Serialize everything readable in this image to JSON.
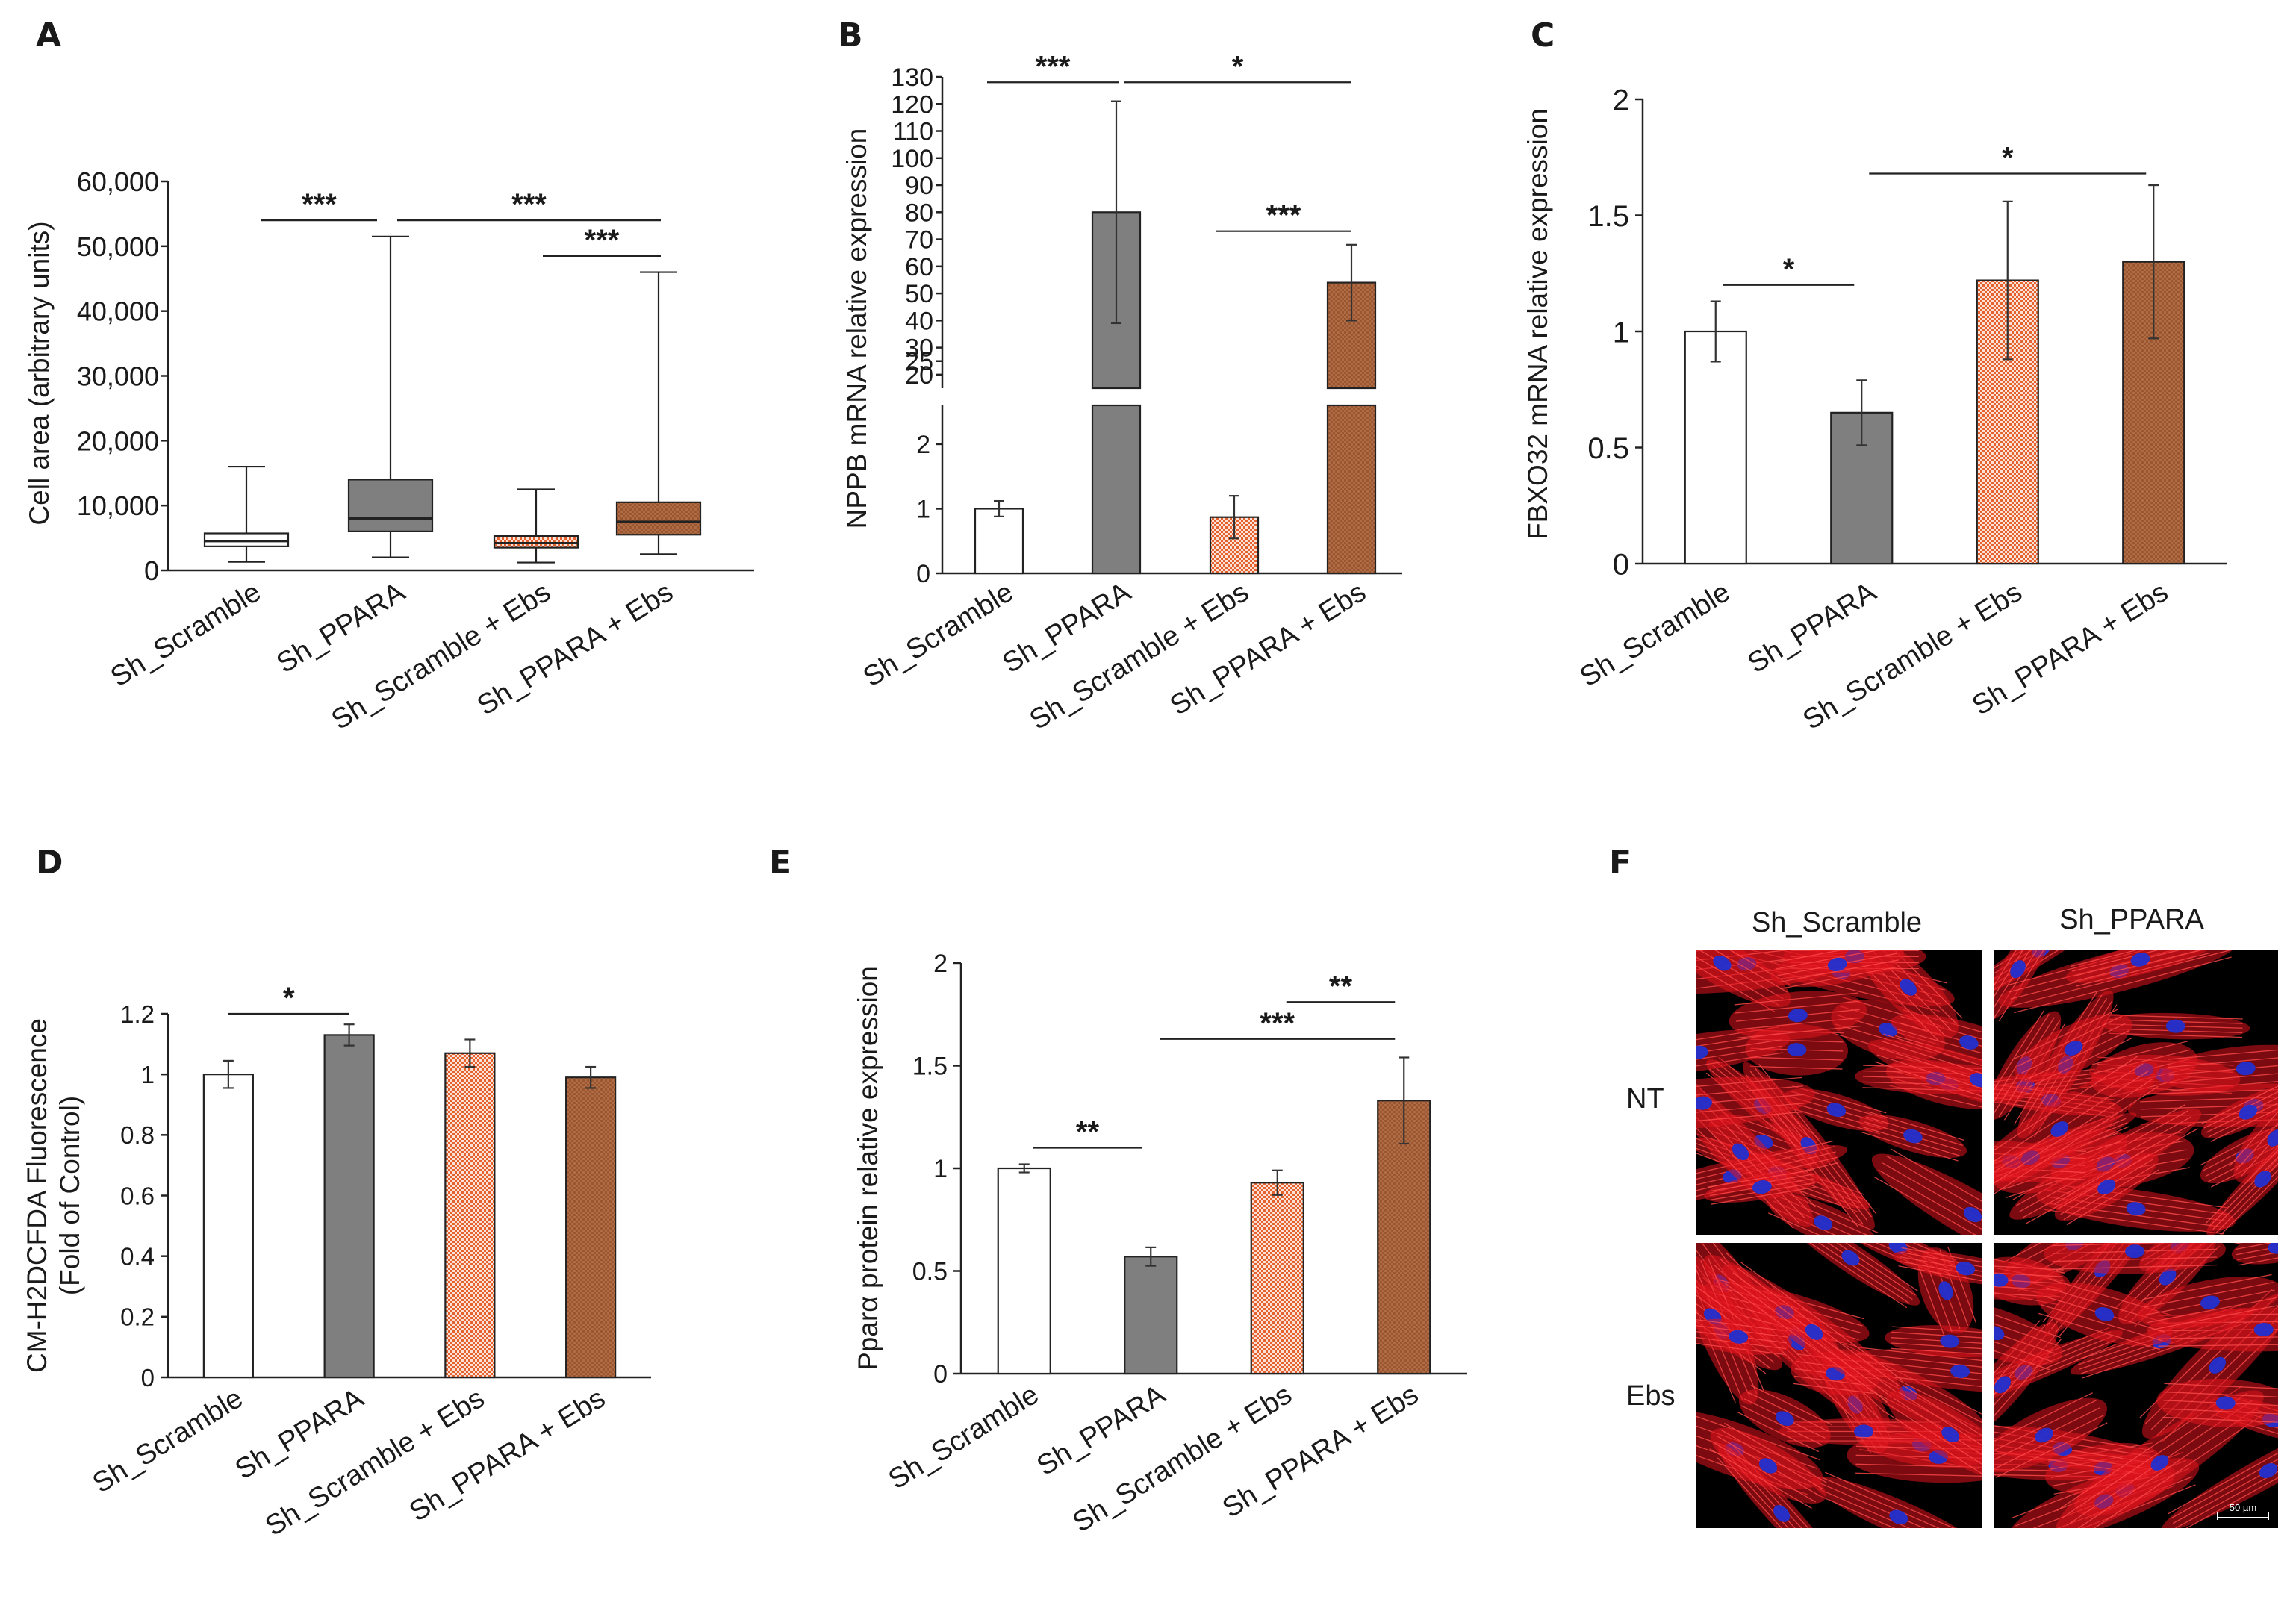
{
  "panels": {
    "A": "A",
    "B": "B",
    "C": "C",
    "D": "D",
    "E": "E",
    "F": "F"
  },
  "colors": {
    "sh_scramble": "#ffffff",
    "sh_ppara": "#7f7f7f",
    "sh_scramble_ebs": "#f3b79d",
    "sh_ppara_ebs": "#a8643c",
    "image_background": "#000000",
    "actin_stain": "#e0141e",
    "nuclei_stain": "#2230d0"
  },
  "chart_data": [
    {
      "panel": "A",
      "type": "box",
      "title": "",
      "xlabel": "",
      "ylabel": "Cell area (arbitrary units)",
      "categories": [
        "Sh_Scramble",
        "Sh_PPARA",
        "Sh_Scramble + Ebs",
        "Sh_PPARA + Ebs"
      ],
      "ylim": [
        0,
        60000
      ],
      "yticks": [
        0,
        10000,
        20000,
        30000,
        40000,
        50000,
        60000
      ],
      "ytick_labels": [
        "0",
        "10,000",
        "20,000",
        "30,000",
        "40,000",
        "50,000",
        "60,000"
      ],
      "boxes": [
        {
          "min": 1300,
          "q1": 3700,
          "median": 4500,
          "q3": 5700,
          "max": 16000
        },
        {
          "min": 2000,
          "q1": 6000,
          "median": 8000,
          "q3": 14000,
          "max": 51500
        },
        {
          "min": 1200,
          "q1": 3500,
          "median": 4200,
          "q3": 5300,
          "max": 12500
        },
        {
          "min": 2500,
          "q1": 5500,
          "median": 7500,
          "q3": 10500,
          "max": 46000
        }
      ],
      "significance": [
        {
          "from": 0,
          "to": 1,
          "y": 54000,
          "label": "***"
        },
        {
          "from": 1,
          "to": 3,
          "y": 54000,
          "label": "***"
        },
        {
          "from": 2,
          "to": 3,
          "y": 48500,
          "label": "***"
        }
      ]
    },
    {
      "panel": "B",
      "type": "bar",
      "title": "",
      "xlabel": "",
      "ylabel": "NPPB mRNA relative expression",
      "categories": [
        "Sh_Scramble",
        "Sh_PPARA",
        "Sh_Scramble + Ebs",
        "Sh_PPARA + Ebs"
      ],
      "broken_axis": {
        "lower_range": [
          0,
          2.6
        ],
        "upper_range": [
          15,
          130
        ]
      },
      "yticks_lower": [
        0,
        1,
        2
      ],
      "yticks_upper": [
        20,
        25,
        30,
        40,
        50,
        60,
        70,
        80,
        90,
        100,
        110,
        120,
        130
      ],
      "values": [
        1.0,
        80,
        0.87,
        54
      ],
      "errors": [
        0.12,
        41,
        0.33,
        14
      ],
      "significance": [
        {
          "from": 0,
          "to": 1,
          "y": 128,
          "label": "***"
        },
        {
          "from": 1,
          "to": 3,
          "y": 128,
          "label": "*"
        },
        {
          "from": 2,
          "to": 3,
          "y": 73,
          "label": "***"
        }
      ]
    },
    {
      "panel": "C",
      "type": "bar",
      "title": "",
      "xlabel": "",
      "ylabel": "FBXO32 mRNA relative expression",
      "categories": [
        "Sh_Scramble",
        "Sh_PPARA",
        "Sh_Scramble + Ebs",
        "Sh_PPARA + Ebs"
      ],
      "ylim": [
        0,
        2
      ],
      "yticks": [
        0,
        0.5,
        1,
        1.5,
        2
      ],
      "ytick_labels": [
        "0",
        "0.5",
        "1",
        "1.5",
        "2"
      ],
      "values": [
        1.0,
        0.65,
        1.22,
        1.3
      ],
      "errors": [
        0.13,
        0.14,
        0.34,
        0.33
      ],
      "significance": [
        {
          "from": 0,
          "to": 1,
          "y": 1.2,
          "label": "*"
        },
        {
          "from": 1,
          "to": 3,
          "y": 1.68,
          "label": "*"
        }
      ]
    },
    {
      "panel": "D",
      "type": "bar",
      "title": "",
      "xlabel": "",
      "ylabel": "CM-H2DCFDA Fluorescence",
      "ylabel2": "(Fold of Control)",
      "categories": [
        "Sh_Scramble",
        "Sh_PPARA",
        "Sh_Scramble + Ebs",
        "Sh_PPARA + Ebs"
      ],
      "ylim": [
        0,
        1.2
      ],
      "yticks": [
        0,
        0.2,
        0.4,
        0.6,
        0.8,
        1,
        1.2
      ],
      "ytick_labels": [
        "0",
        "0.2",
        "0.4",
        "0.6",
        "0.8",
        "1",
        "1.2"
      ],
      "values": [
        1.0,
        1.13,
        1.07,
        0.99
      ],
      "errors": [
        0.045,
        0.035,
        0.045,
        0.035
      ],
      "significance": [
        {
          "from": 0,
          "to": 1,
          "y": 1.2,
          "label": "*"
        }
      ]
    },
    {
      "panel": "E",
      "type": "bar",
      "title": "",
      "xlabel": "",
      "ylabel": "Pparα protein relative expression",
      "categories": [
        "Sh_Scramble",
        "Sh_PPARA",
        "Sh_Scramble + Ebs",
        "Sh_PPARA + Ebs"
      ],
      "ylim": [
        0,
        2
      ],
      "yticks": [
        0,
        0.5,
        1,
        1.5,
        2
      ],
      "ytick_labels": [
        "0",
        "0.5",
        "1",
        "1.5",
        "2"
      ],
      "values": [
        1.0,
        0.57,
        0.93,
        1.33
      ],
      "errors": [
        0.02,
        0.045,
        0.06,
        0.21
      ],
      "significance": [
        {
          "from": 0,
          "to": 1,
          "y": 1.1,
          "label": "**"
        },
        {
          "from": 1,
          "to": 3,
          "y": 1.63,
          "label": "***"
        },
        {
          "from": 2,
          "to": 3,
          "y": 1.81,
          "label": "**"
        }
      ]
    }
  ],
  "micrographs": {
    "col_labels": [
      "Sh_Scramble",
      "Sh_PPARA"
    ],
    "row_labels": [
      "NT",
      "Ebs"
    ],
    "scale_bar": "50 µm"
  }
}
